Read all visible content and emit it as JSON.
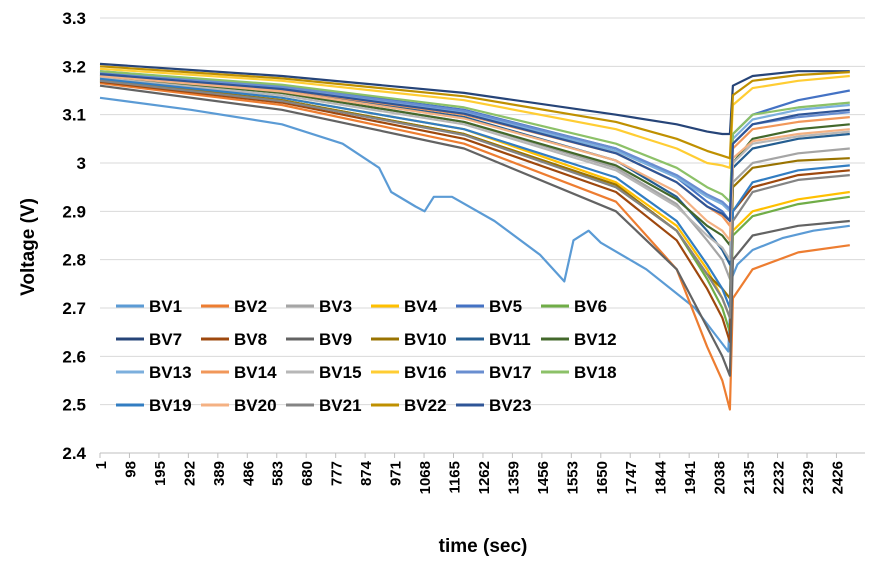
{
  "chart_data": {
    "type": "line",
    "title": "",
    "xlabel": "time (sec)",
    "ylabel": "Voltage (V)",
    "ylim": [
      2.4,
      3.3
    ],
    "y_ticks": [
      "2.4",
      "2.5",
      "2.6",
      "2.7",
      "2.8",
      "2.9",
      "3",
      "3.1",
      "3.2",
      "3.3"
    ],
    "x_tick_labels": [
      "1",
      "98",
      "195",
      "292",
      "389",
      "486",
      "583",
      "680",
      "777",
      "874",
      "971",
      "1068",
      "1165",
      "1262",
      "1359",
      "1456",
      "1553",
      "1650",
      "1747",
      "1844",
      "1941",
      "2038",
      "2135",
      "2232",
      "2329",
      "2426"
    ],
    "xlim": [
      1,
      2520
    ],
    "grid": "horizontal",
    "legend_position": "bottom-left inside",
    "series": [
      {
        "name": "BV1",
        "color": "#5B9BD5",
        "x": [
          1,
          300,
          600,
          800,
          920,
          960,
          1040,
          1070,
          1100,
          1160,
          1300,
          1450,
          1530,
          1560,
          1610,
          1650,
          1800,
          1960,
          2070,
          2080,
          2100,
          2150,
          2250,
          2350,
          2470
        ],
        "y": [
          3.135,
          3.11,
          3.08,
          3.04,
          2.99,
          2.94,
          2.91,
          2.9,
          2.93,
          2.93,
          2.88,
          2.81,
          2.755,
          2.84,
          2.86,
          2.835,
          2.78,
          2.7,
          2.61,
          2.76,
          2.79,
          2.82,
          2.845,
          2.86,
          2.87
        ]
      },
      {
        "name": "BV2",
        "color": "#ED7D31",
        "x": [
          1,
          600,
          1200,
          1700,
          1900,
          2000,
          2050,
          2075,
          2085,
          2150,
          2300,
          2470
        ],
        "y": [
          3.165,
          3.12,
          3.04,
          2.92,
          2.78,
          2.62,
          2.55,
          2.49,
          2.72,
          2.78,
          2.815,
          2.83
        ]
      },
      {
        "name": "BV3",
        "color": "#A5A5A5",
        "x": [
          1,
          600,
          1200,
          1700,
          1900,
          2000,
          2050,
          2075,
          2085,
          2150,
          2300,
          2470
        ],
        "y": [
          3.18,
          3.145,
          3.085,
          2.99,
          2.915,
          2.84,
          2.8,
          2.76,
          2.96,
          3.0,
          3.02,
          3.03
        ]
      },
      {
        "name": "BV4",
        "color": "#FFC000",
        "x": [
          1,
          600,
          1200,
          1700,
          1900,
          2000,
          2050,
          2075,
          2085,
          2150,
          2300,
          2470
        ],
        "y": [
          3.175,
          3.135,
          3.07,
          2.96,
          2.87,
          2.78,
          2.72,
          2.68,
          2.86,
          2.9,
          2.925,
          2.94
        ]
      },
      {
        "name": "BV5",
        "color": "#4472C4",
        "x": [
          1,
          600,
          1200,
          1700,
          1900,
          2000,
          2050,
          2075,
          2085,
          2150,
          2300,
          2470
        ],
        "y": [
          3.19,
          3.16,
          3.11,
          3.03,
          2.97,
          2.92,
          2.9,
          2.88,
          3.06,
          3.1,
          3.13,
          3.15
        ]
      },
      {
        "name": "BV6",
        "color": "#70AD47",
        "x": [
          1,
          600,
          1200,
          1700,
          1900,
          2000,
          2050,
          2075,
          2085,
          2150,
          2300,
          2470
        ],
        "y": [
          3.17,
          3.13,
          3.06,
          2.95,
          2.86,
          2.76,
          2.7,
          2.65,
          2.85,
          2.89,
          2.915,
          2.93
        ]
      },
      {
        "name": "BV7",
        "color": "#264478",
        "x": [
          1,
          600,
          1200,
          1700,
          1900,
          2000,
          2050,
          2075,
          2085,
          2150,
          2300,
          2470
        ],
        "y": [
          3.205,
          3.18,
          3.145,
          3.1,
          3.08,
          3.065,
          3.06,
          3.06,
          3.16,
          3.18,
          3.19,
          3.19
        ]
      },
      {
        "name": "BV8",
        "color": "#9E480E",
        "x": [
          1,
          600,
          1200,
          1700,
          1900,
          2000,
          2050,
          2075,
          2085,
          2150,
          2300,
          2470
        ],
        "y": [
          3.168,
          3.125,
          3.05,
          2.94,
          2.84,
          2.74,
          2.68,
          2.63,
          2.9,
          2.95,
          2.975,
          2.985
        ]
      },
      {
        "name": "BV9",
        "color": "#636363",
        "x": [
          1,
          600,
          1200,
          1700,
          1900,
          2000,
          2050,
          2075,
          2085,
          2150,
          2300,
          2470
        ],
        "y": [
          3.16,
          3.11,
          3.03,
          2.9,
          2.78,
          2.66,
          2.6,
          2.56,
          2.8,
          2.85,
          2.87,
          2.88
        ]
      },
      {
        "name": "BV10",
        "color": "#997300",
        "x": [
          1,
          600,
          1200,
          1700,
          1900,
          2000,
          2050,
          2075,
          2085,
          2150,
          2300,
          2470
        ],
        "y": [
          3.172,
          3.13,
          3.06,
          2.955,
          2.86,
          2.77,
          2.74,
          2.72,
          2.95,
          2.99,
          3.005,
          3.01
        ]
      },
      {
        "name": "BV11",
        "color": "#255E91",
        "x": [
          1,
          600,
          1200,
          1700,
          1900,
          2000,
          2050,
          2075,
          2085,
          2150,
          2300,
          2470
        ],
        "y": [
          3.182,
          3.15,
          3.095,
          3.005,
          2.93,
          2.86,
          2.82,
          2.79,
          2.99,
          3.03,
          3.05,
          3.06
        ]
      },
      {
        "name": "BV12",
        "color": "#43682B",
        "x": [
          1,
          600,
          1200,
          1700,
          1900,
          2000,
          2050,
          2075,
          2085,
          2150,
          2300,
          2470
        ],
        "y": [
          3.178,
          3.145,
          3.085,
          2.995,
          2.925,
          2.87,
          2.85,
          2.83,
          3.0,
          3.05,
          3.07,
          3.08
        ]
      },
      {
        "name": "BV13",
        "color": "#7CAFDD",
        "x": [
          1,
          600,
          1200,
          1700,
          1900,
          2000,
          2050,
          2075,
          2085,
          2150,
          2300,
          2470
        ],
        "y": [
          3.186,
          3.155,
          3.105,
          3.025,
          2.97,
          2.93,
          2.915,
          2.9,
          3.05,
          3.09,
          3.11,
          3.12
        ]
      },
      {
        "name": "BV14",
        "color": "#F1975A",
        "x": [
          1,
          600,
          1200,
          1700,
          1900,
          2000,
          2050,
          2075,
          2085,
          2150,
          2300,
          2470
        ],
        "y": [
          3.183,
          3.152,
          3.1,
          3.02,
          2.96,
          2.91,
          2.89,
          2.87,
          3.03,
          3.07,
          3.085,
          3.095
        ]
      },
      {
        "name": "BV15",
        "color": "#B7B7B7",
        "x": [
          1,
          600,
          1200,
          1700,
          1900,
          2000,
          2050,
          2075,
          2085,
          2150,
          2300,
          2470
        ],
        "y": [
          3.176,
          3.14,
          3.08,
          2.985,
          2.91,
          2.85,
          2.825,
          2.8,
          3.0,
          3.04,
          3.055,
          3.065
        ]
      },
      {
        "name": "BV16",
        "color": "#FFCD33",
        "x": [
          1,
          600,
          1200,
          1700,
          1900,
          2000,
          2050,
          2075,
          2085,
          2150,
          2300,
          2470
        ],
        "y": [
          3.195,
          3.17,
          3.13,
          3.07,
          3.03,
          3.0,
          2.995,
          2.99,
          3.12,
          3.155,
          3.17,
          3.18
        ]
      },
      {
        "name": "BV17",
        "color": "#698ED0",
        "x": [
          1,
          600,
          1200,
          1700,
          1900,
          2000,
          2050,
          2075,
          2085,
          2150,
          2300,
          2470
        ],
        "y": [
          3.188,
          3.158,
          3.108,
          3.03,
          2.975,
          2.935,
          2.92,
          2.905,
          3.04,
          3.08,
          3.095,
          3.105
        ]
      },
      {
        "name": "BV18",
        "color": "#8CC168",
        "x": [
          1,
          600,
          1200,
          1700,
          1900,
          2000,
          2050,
          2075,
          2085,
          2150,
          2300,
          2470
        ],
        "y": [
          3.19,
          3.162,
          3.115,
          3.04,
          2.99,
          2.95,
          2.935,
          2.92,
          3.06,
          3.1,
          3.115,
          3.125
        ]
      },
      {
        "name": "BV19",
        "color": "#327DC2",
        "x": [
          1,
          600,
          1200,
          1700,
          1900,
          2000,
          2050,
          2075,
          2085,
          2150,
          2300,
          2470
        ],
        "y": [
          3.174,
          3.135,
          3.07,
          2.97,
          2.88,
          2.79,
          2.74,
          2.7,
          2.9,
          2.96,
          2.985,
          2.995
        ]
      },
      {
        "name": "BV20",
        "color": "#F4B183",
        "x": [
          1,
          600,
          1200,
          1700,
          1900,
          2000,
          2050,
          2075,
          2085,
          2150,
          2300,
          2470
        ],
        "y": [
          3.18,
          3.148,
          3.092,
          3.005,
          2.94,
          2.88,
          2.86,
          2.84,
          3.01,
          3.045,
          3.06,
          3.07
        ]
      },
      {
        "name": "BV21",
        "color": "#848484",
        "x": [
          1,
          600,
          1200,
          1700,
          1900,
          2000,
          2050,
          2075,
          2085,
          2150,
          2300,
          2470
        ],
        "y": [
          3.17,
          3.128,
          3.058,
          2.95,
          2.86,
          2.77,
          2.72,
          2.68,
          2.88,
          2.94,
          2.965,
          2.975
        ]
      },
      {
        "name": "BV22",
        "color": "#BF9000",
        "x": [
          1,
          600,
          1200,
          1700,
          1900,
          2000,
          2050,
          2075,
          2085,
          2150,
          2300,
          2470
        ],
        "y": [
          3.2,
          3.175,
          3.138,
          3.085,
          3.05,
          3.025,
          3.015,
          3.01,
          3.14,
          3.17,
          3.182,
          3.188
        ]
      },
      {
        "name": "BV23",
        "color": "#2F5597",
        "x": [
          1,
          600,
          1200,
          1700,
          1900,
          2000,
          2050,
          2075,
          2085,
          2150,
          2300,
          2470
        ],
        "y": [
          3.184,
          3.153,
          3.102,
          3.02,
          2.96,
          2.91,
          2.895,
          2.88,
          3.04,
          3.08,
          3.1,
          3.11
        ]
      }
    ]
  }
}
